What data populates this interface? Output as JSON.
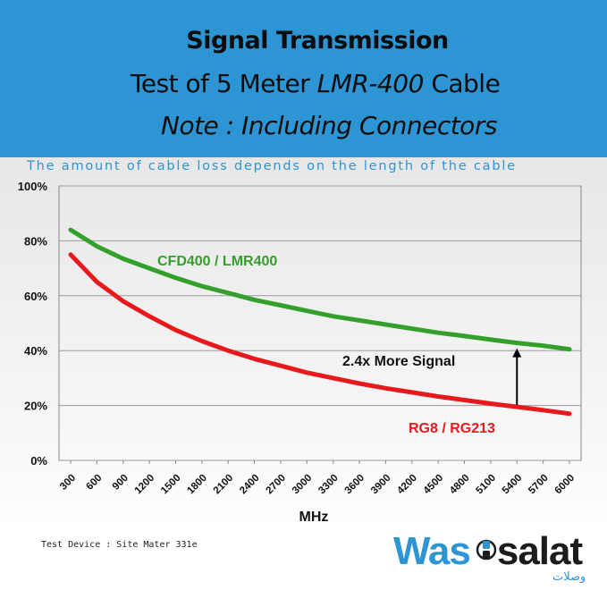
{
  "header": {
    "title": "Signal Transmission",
    "subtitle_line1": "Test of 5 Meter LMR-400 Cable",
    "subtitle_line2": "Note : Including Connectors"
  },
  "chart_subtitle": "The amount of cable loss depends on the length of the cable",
  "chart_data": {
    "type": "line",
    "title": "Signal Transmission",
    "xlabel": "MHz",
    "ylabel": "",
    "x": [
      300,
      600,
      900,
      1200,
      1500,
      1800,
      2100,
      2400,
      2700,
      3000,
      3300,
      3600,
      3900,
      4200,
      4500,
      4800,
      5100,
      5400,
      5700,
      6000
    ],
    "y_ticks": [
      "0%",
      "20%",
      "40%",
      "60%",
      "80%",
      "100%"
    ],
    "ylim": [
      0,
      100
    ],
    "grid": true,
    "series": [
      {
        "name": "CFD400 / LMR400",
        "color": "#33a02c",
        "values": [
          84,
          78,
          73.5,
          70,
          66.5,
          63.5,
          61,
          58.5,
          56.5,
          54.5,
          52.5,
          51,
          49.5,
          48,
          46.5,
          45.3,
          44,
          42.8,
          41.8,
          40.5
        ]
      },
      {
        "name": "RG8 / RG213",
        "color": "#e8191c",
        "values": [
          75,
          65,
          58,
          52.5,
          47.5,
          43.5,
          40,
          37,
          34.5,
          32,
          30,
          28,
          26.3,
          24.8,
          23.3,
          22,
          20.7,
          19.5,
          18.3,
          17
        ]
      }
    ],
    "annotation": {
      "text": "2.4x More Signal",
      "at_x": 5400
    }
  },
  "footnote": "Test Device : Site Mater 331e",
  "logo": {
    "text_part1": "Was",
    "text_part2": "salat",
    "arabic": "وصلات"
  }
}
